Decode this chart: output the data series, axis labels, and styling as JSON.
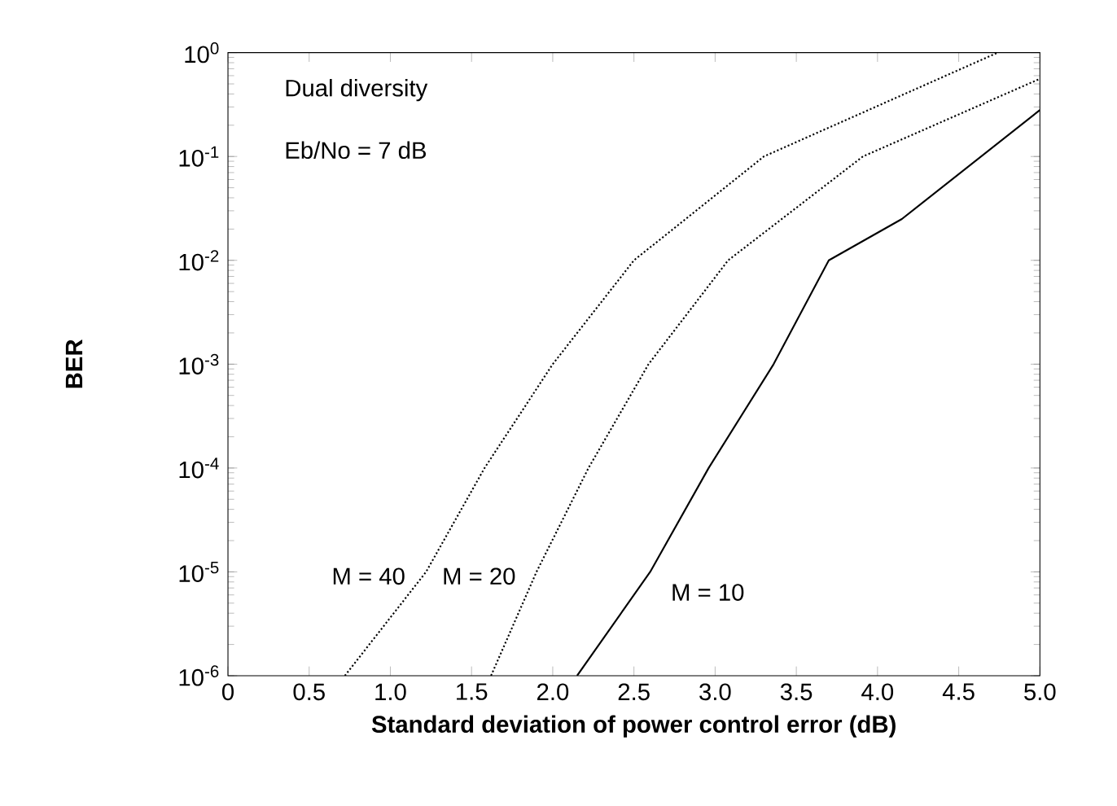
{
  "chart_data": {
    "type": "line",
    "xlabel": "Standard deviation of power control error (dB)",
    "ylabel": "BER",
    "annotations": [
      "Dual diversity",
      "Eb/No = 7 dB"
    ],
    "xlim": [
      0,
      5
    ],
    "xticks": [
      0,
      0.5,
      {
        "value": 1,
        "label": "1.0"
      },
      1.5,
      {
        "value": 2,
        "label": "2.0"
      },
      2.5,
      {
        "value": 3,
        "label": "3.0"
      },
      3.5,
      {
        "value": 4,
        "label": "4.0"
      },
      4.5,
      {
        "value": 5,
        "label": "5.0"
      }
    ],
    "ylim": [
      1e-06,
      1
    ],
    "yticks": [
      {
        "value": 1e-06,
        "label": "10$^{-6}$"
      },
      {
        "value": 1e-05,
        "label": "10$^{-5}$"
      },
      {
        "value": 0.0001,
        "label": "10$^{-4}$"
      },
      {
        "value": 0.001,
        "label": "10$^{-3}$"
      },
      {
        "value": 0.01,
        "label": "10$^{-2}$"
      },
      {
        "value": 0.1,
        "label": "10$^{-1}$"
      },
      {
        "value": 1,
        "label": "10$^{0}$"
      }
    ],
    "log": "y",
    "grid": false,
    "legend": false,
    "marker": "none",
    "series": [
      {
        "name": "M = 40",
        "color": "#000000",
        "line_style": "dotted",
        "x": [
          0.72,
          1.22,
          1.58,
          2.0,
          2.5,
          3.3,
          4.74
        ],
        "values": [
          1e-06,
          1e-05,
          0.0001,
          0.001,
          0.01,
          0.1,
          1
        ]
      },
      {
        "name": "M = 20",
        "color": "#000000",
        "line_style": "dotted",
        "x": [
          1.62,
          1.9,
          2.22,
          2.59,
          3.08,
          3.91,
          5.0
        ],
        "values": [
          1e-06,
          1e-05,
          0.0001,
          0.001,
          0.01,
          0.1,
          0.56
        ]
      },
      {
        "name": "M = 10",
        "color": "#000000",
        "line_style": "solid",
        "x": [
          2.15,
          2.6,
          2.96,
          3.36,
          3.7,
          4.15,
          5.0
        ],
        "values": [
          1e-06,
          1e-05,
          0.0001,
          0.001,
          0.01,
          0.025,
          0.28
        ]
      }
    ]
  }
}
